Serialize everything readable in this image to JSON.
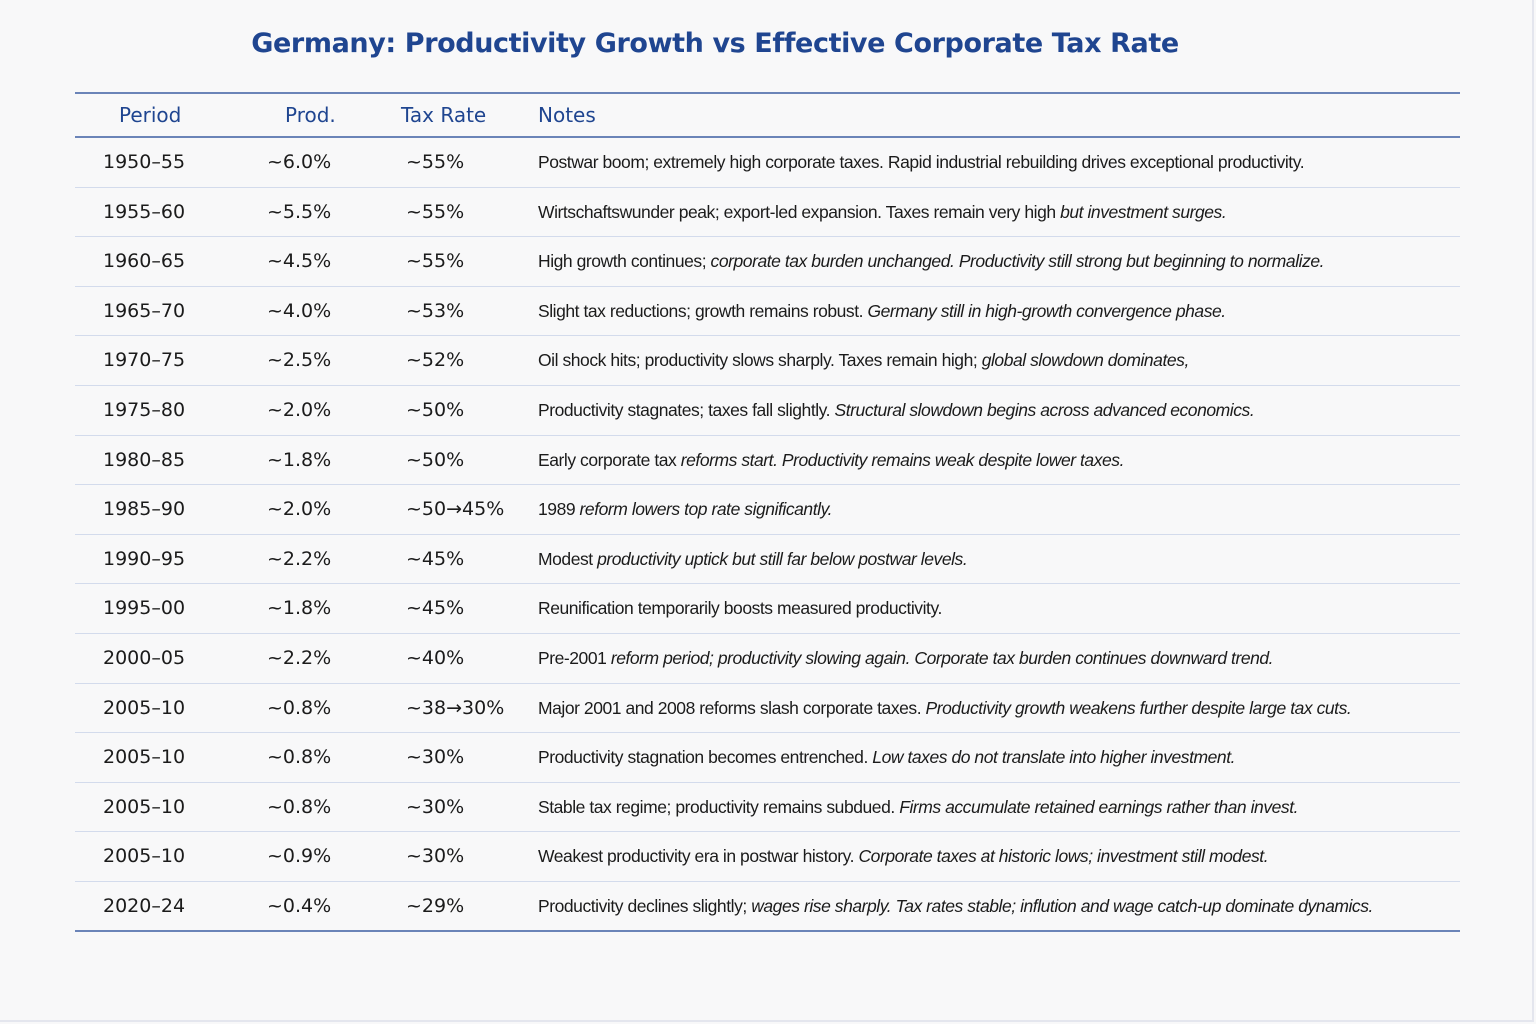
{
  "title": "Germany: Productivity Growth vs Effective Corporate Tax Rate",
  "colors": {
    "title": "#1f4590",
    "header_text": "#1f4590",
    "rule": "#6b84b8",
    "row_divider": "#d3dbec",
    "body_text": "#1b1b1b",
    "background": "#f8f8f9"
  },
  "table": {
    "headers": {
      "period": "Period",
      "prod": "Prod.",
      "tax": "Tax Rate",
      "notes": "Notes"
    },
    "rows": [
      {
        "period": "1950–55",
        "prod": "~6.0%",
        "tax": "~55%",
        "note_a": "Postwar boom; extremely high corporate taxes. Rapid industrial rebuilding drives exceptional productivity.",
        "note_b": ""
      },
      {
        "period": "1955–60",
        "prod": "~5.5%",
        "tax": "~55%",
        "note_a": "Wirtschaftswunder peak; export-led expansion. Taxes remain very high",
        "note_b": " but investment surges."
      },
      {
        "period": "1960–65",
        "prod": "~4.5%",
        "tax": "~55%",
        "note_a": "High growth continues;",
        "note_b": " corporate tax burden unchanged. Productivity still strong but beginning to normalize."
      },
      {
        "period": "1965–70",
        "prod": "~4.0%",
        "tax": "~53%",
        "note_a": "Slight tax reductions; growth remains robust.",
        "note_b": " Germany still in high-growth convergence phase."
      },
      {
        "period": "1970–75",
        "prod": "~2.5%",
        "tax": "~52%",
        "note_a": "Oil shock hits; productivity slows sharply. Taxes remain high;",
        "note_b": " global slowdown dominates,"
      },
      {
        "period": "1975–80",
        "prod": "~2.0%",
        "tax": "~50%",
        "note_a": "Productivity stagnates; taxes fall slightly.",
        "note_b": " Structural slowdown begins across advanced economics."
      },
      {
        "period": "1980–85",
        "prod": "~1.8%",
        "tax": "~50%",
        "note_a": "Early corporate tax",
        "note_b": " reforms start. Productivity remains weak despite lower taxes."
      },
      {
        "period": "1985–90",
        "prod": "~2.0%",
        "tax": "~50→45%",
        "note_a": "1989",
        "note_b": " reform lowers top rate significantly."
      },
      {
        "period": "1990–95",
        "prod": "~2.2%",
        "tax": "~45%",
        "note_a": "Modest",
        "note_b": " productivity uptick but still far below postwar levels."
      },
      {
        "period": "1995–00",
        "prod": "~1.8%",
        "tax": "~45%",
        "note_a": "Reunification temporarily boosts measured productivity.",
        "note_b": ""
      },
      {
        "period": "2000–05",
        "prod": "~2.2%",
        "tax": "~40%",
        "note_a": "Pre-2001",
        "note_b": " reform period; productivity slowing again. Corporate tax burden continues downward trend."
      },
      {
        "period": "2005–10",
        "prod": "~0.8%",
        "tax": "~38→30%",
        "note_a": "Major  2001 and 2008 reforms slash corporate taxes.",
        "note_b": " Productivity growth weakens further despite large tax cuts."
      },
      {
        "period": "2005–10",
        "prod": "~0.8%",
        "tax": "~30%",
        "note_a": "Productivity stagnation becomes entrenched.",
        "note_b": " Low taxes do not translate into higher investment."
      },
      {
        "period": "2005–10",
        "prod": "~0.8%",
        "tax": "~30%",
        "note_a": "Stable tax regime; productivity remains subdued.",
        "note_b": " Firms accumulate retained earnings rather than invest."
      },
      {
        "period": "2005–10",
        "prod": "~0.9%",
        "tax": "~30%",
        "note_a": "Weakest productivity era in postwar history.",
        "note_b": " Corporate taxes at historic lows; investment still modest."
      },
      {
        "period": "2020–24",
        "prod": "~0.4%",
        "tax": "~29%",
        "note_a": "Productivity declines slightly;",
        "note_b": " wages rise sharply. Tax rates stable; inflution and wage catch-up dominate dynamics."
      }
    ]
  }
}
